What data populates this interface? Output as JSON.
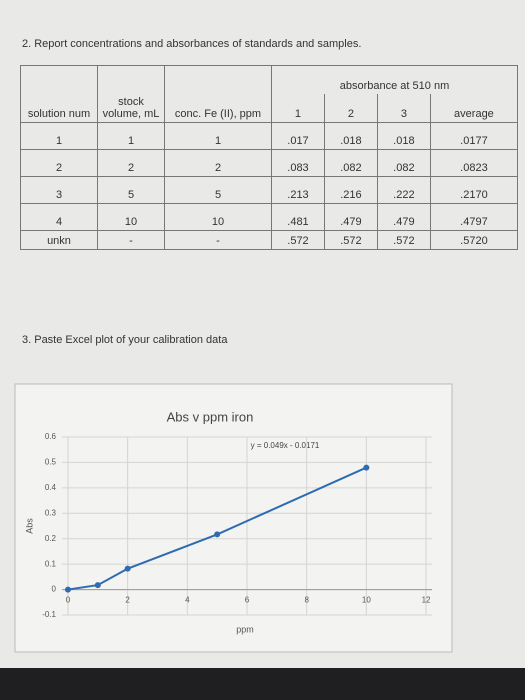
{
  "question2": "2. Report concentrations and absorbances of standards and samples.",
  "table": {
    "headers": [
      "solution num",
      "stock volume, mL",
      "conc. Fe (II), ppm"
    ],
    "group_header": "absorbance at 510 nm",
    "subheaders": [
      "1",
      "2",
      "3",
      "average"
    ],
    "rows": [
      [
        "1",
        "1",
        "1",
        ".017",
        ".018",
        ".018",
        ".0177"
      ],
      [
        "2",
        "2",
        "2",
        ".083",
        ".082",
        ".082",
        ".0823"
      ],
      [
        "3",
        "5",
        "5",
        ".213",
        ".216",
        ".222",
        ".2170"
      ],
      [
        "4",
        "10",
        "10",
        ".481",
        ".479",
        ".479",
        ".4797"
      ],
      [
        "unkn",
        "-",
        "-",
        ".572",
        ".572",
        ".572",
        ".5720"
      ]
    ]
  },
  "question3": "3. Paste Excel plot of your calibration data",
  "chart_data": {
    "type": "scatter",
    "title": "Abs v ppm iron",
    "equation": "y = 0.049x - 0.0171",
    "x_label": "ppm",
    "y_label": "Abs",
    "x": [
      0,
      1,
      2,
      5,
      10
    ],
    "values": [
      0,
      0.0177,
      0.0823,
      0.217,
      0.4797
    ],
    "color": "#2e6bb0",
    "xlim": [
      -0.2,
      12.2
    ],
    "xticks": [
      0,
      2,
      4,
      6,
      8,
      10,
      12
    ],
    "ylim": [
      -0.1,
      0.6
    ],
    "yticks": [
      -0.1,
      0,
      0.1,
      0.2,
      0.3,
      0.4,
      0.5,
      0.6
    ],
    "grid": true
  }
}
